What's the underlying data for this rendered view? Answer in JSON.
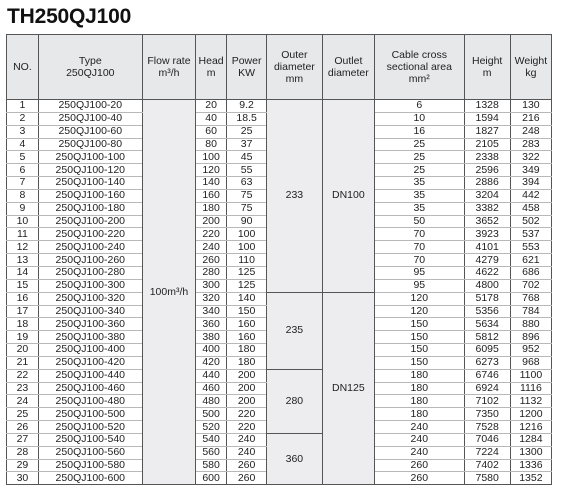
{
  "title": "TH250QJ100",
  "headers": {
    "no": "NO.",
    "type": [
      "Type",
      "250QJ100"
    ],
    "flow": [
      "Flow rate",
      "m³/h"
    ],
    "head": [
      "Head",
      "m"
    ],
    "power": [
      "Power",
      "KW"
    ],
    "outer": [
      "Outer",
      "diameter",
      "mm"
    ],
    "outlet": [
      "Outlet",
      "diameter"
    ],
    "cable": [
      "Cable cross",
      "sectional area",
      "mm²"
    ],
    "height": [
      "Height",
      "m"
    ],
    "weight": [
      "Weight",
      "kg"
    ]
  },
  "merged": {
    "flow_rate": "100m³/h",
    "outer_diameter": [
      {
        "value": "233",
        "rows": 15
      },
      {
        "value": "235",
        "rows": 6
      },
      {
        "value": "280",
        "rows": 5
      },
      {
        "value": "360",
        "rows": 4
      }
    ],
    "outlet_diameter": [
      {
        "value": "DN100",
        "rows": 15
      },
      {
        "value": "DN125",
        "rows": 15
      }
    ]
  },
  "rows": [
    {
      "no": "1",
      "type": "250QJ100-20",
      "head": "20",
      "power": "9.2",
      "cable": "6",
      "height": "1328",
      "weight": "130"
    },
    {
      "no": "2",
      "type": "250QJ100-40",
      "head": "40",
      "power": "18.5",
      "cable": "10",
      "height": "1594",
      "weight": "216"
    },
    {
      "no": "3",
      "type": "250QJ100-60",
      "head": "60",
      "power": "25",
      "cable": "16",
      "height": "1827",
      "weight": "248"
    },
    {
      "no": "4",
      "type": "250QJ100-80",
      "head": "80",
      "power": "37",
      "cable": "25",
      "height": "2105",
      "weight": "283"
    },
    {
      "no": "5",
      "type": "250QJ100-100",
      "head": "100",
      "power": "45",
      "cable": "25",
      "height": "2338",
      "weight": "322"
    },
    {
      "no": "6",
      "type": "250QJ100-120",
      "head": "120",
      "power": "55",
      "cable": "25",
      "height": "2596",
      "weight": "349"
    },
    {
      "no": "7",
      "type": "250QJ100-140",
      "head": "140",
      "power": "63",
      "cable": "35",
      "height": "2886",
      "weight": "394"
    },
    {
      "no": "8",
      "type": "250QJ100-160",
      "head": "160",
      "power": "75",
      "cable": "35",
      "height": "3204",
      "weight": "442"
    },
    {
      "no": "9",
      "type": "250QJ100-180",
      "head": "180",
      "power": "75",
      "cable": "35",
      "height": "3382",
      "weight": "458"
    },
    {
      "no": "10",
      "type": "250QJ100-200",
      "head": "200",
      "power": "90",
      "cable": "50",
      "height": "3652",
      "weight": "502"
    },
    {
      "no": "11",
      "type": "250QJ100-220",
      "head": "220",
      "power": "100",
      "cable": "70",
      "height": "3923",
      "weight": "537"
    },
    {
      "no": "12",
      "type": "250QJ100-240",
      "head": "240",
      "power": "100",
      "cable": "70",
      "height": "4101",
      "weight": "553"
    },
    {
      "no": "13",
      "type": "250QJ100-260",
      "head": "260",
      "power": "110",
      "cable": "70",
      "height": "4279",
      "weight": "621"
    },
    {
      "no": "14",
      "type": "250QJ100-280",
      "head": "280",
      "power": "125",
      "cable": "95",
      "height": "4622",
      "weight": "686"
    },
    {
      "no": "15",
      "type": "250QJ100-300",
      "head": "300",
      "power": "125",
      "cable": "95",
      "height": "4800",
      "weight": "702"
    },
    {
      "no": "16",
      "type": "250QJ100-320",
      "head": "320",
      "power": "140",
      "cable": "120",
      "height": "5178",
      "weight": "768"
    },
    {
      "no": "17",
      "type": "250QJ100-340",
      "head": "340",
      "power": "150",
      "cable": "120",
      "height": "5356",
      "weight": "784"
    },
    {
      "no": "18",
      "type": "250QJ100-360",
      "head": "360",
      "power": "160",
      "cable": "150",
      "height": "5634",
      "weight": "880"
    },
    {
      "no": "19",
      "type": "250QJ100-380",
      "head": "380",
      "power": "160",
      "cable": "150",
      "height": "5812",
      "weight": "896"
    },
    {
      "no": "20",
      "type": "250QJ100-400",
      "head": "400",
      "power": "180",
      "cable": "150",
      "height": "6095",
      "weight": "952"
    },
    {
      "no": "21",
      "type": "250QJ100-420",
      "head": "420",
      "power": "180",
      "cable": "150",
      "height": "6273",
      "weight": "968"
    },
    {
      "no": "22",
      "type": "250QJ100-440",
      "head": "440",
      "power": "200",
      "cable": "180",
      "height": "6746",
      "weight": "1100"
    },
    {
      "no": "23",
      "type": "250QJ100-460",
      "head": "460",
      "power": "200",
      "cable": "180",
      "height": "6924",
      "weight": "1116"
    },
    {
      "no": "24",
      "type": "250QJ100-480",
      "head": "480",
      "power": "200",
      "cable": "180",
      "height": "7102",
      "weight": "1132"
    },
    {
      "no": "25",
      "type": "250QJ100-500",
      "head": "500",
      "power": "220",
      "cable": "180",
      "height": "7350",
      "weight": "1200"
    },
    {
      "no": "26",
      "type": "250QJ100-520",
      "head": "520",
      "power": "220",
      "cable": "240",
      "height": "7528",
      "weight": "1216"
    },
    {
      "no": "27",
      "type": "250QJ100-540",
      "head": "540",
      "power": "240",
      "cable": "240",
      "height": "7046",
      "weight": "1284"
    },
    {
      "no": "28",
      "type": "250QJ100-560",
      "head": "560",
      "power": "240",
      "cable": "240",
      "height": "7224",
      "weight": "1300"
    },
    {
      "no": "29",
      "type": "250QJ100-580",
      "head": "580",
      "power": "260",
      "cable": "260",
      "height": "7402",
      "weight": "1336"
    },
    {
      "no": "30",
      "type": "250QJ100-600",
      "head": "600",
      "power": "260",
      "cable": "260",
      "height": "7580",
      "weight": "1352"
    }
  ]
}
